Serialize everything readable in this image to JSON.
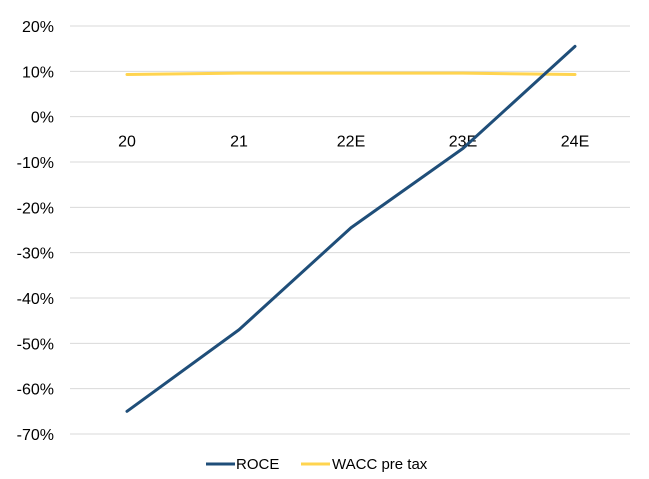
{
  "chart_data": {
    "type": "line",
    "categories": [
      "20",
      "21",
      "22E",
      "23E",
      "24E"
    ],
    "series": [
      {
        "name": "ROCE",
        "values": [
          -65,
          -47,
          -24.5,
          -7,
          15.5
        ],
        "color": "#1f4e79"
      },
      {
        "name": "WACC pre tax",
        "values": [
          9.3,
          9.6,
          9.6,
          9.6,
          9.3
        ],
        "color": "#ffd44f"
      }
    ],
    "y_ticks": [
      "20%",
      "10%",
      "0%",
      "-10%",
      "-20%",
      "-30%",
      "-40%",
      "-50%",
      "-60%",
      "-70%"
    ],
    "ylim": [
      -70,
      20
    ],
    "y_unit": "%",
    "grid": true,
    "legend_position": "bottom"
  }
}
